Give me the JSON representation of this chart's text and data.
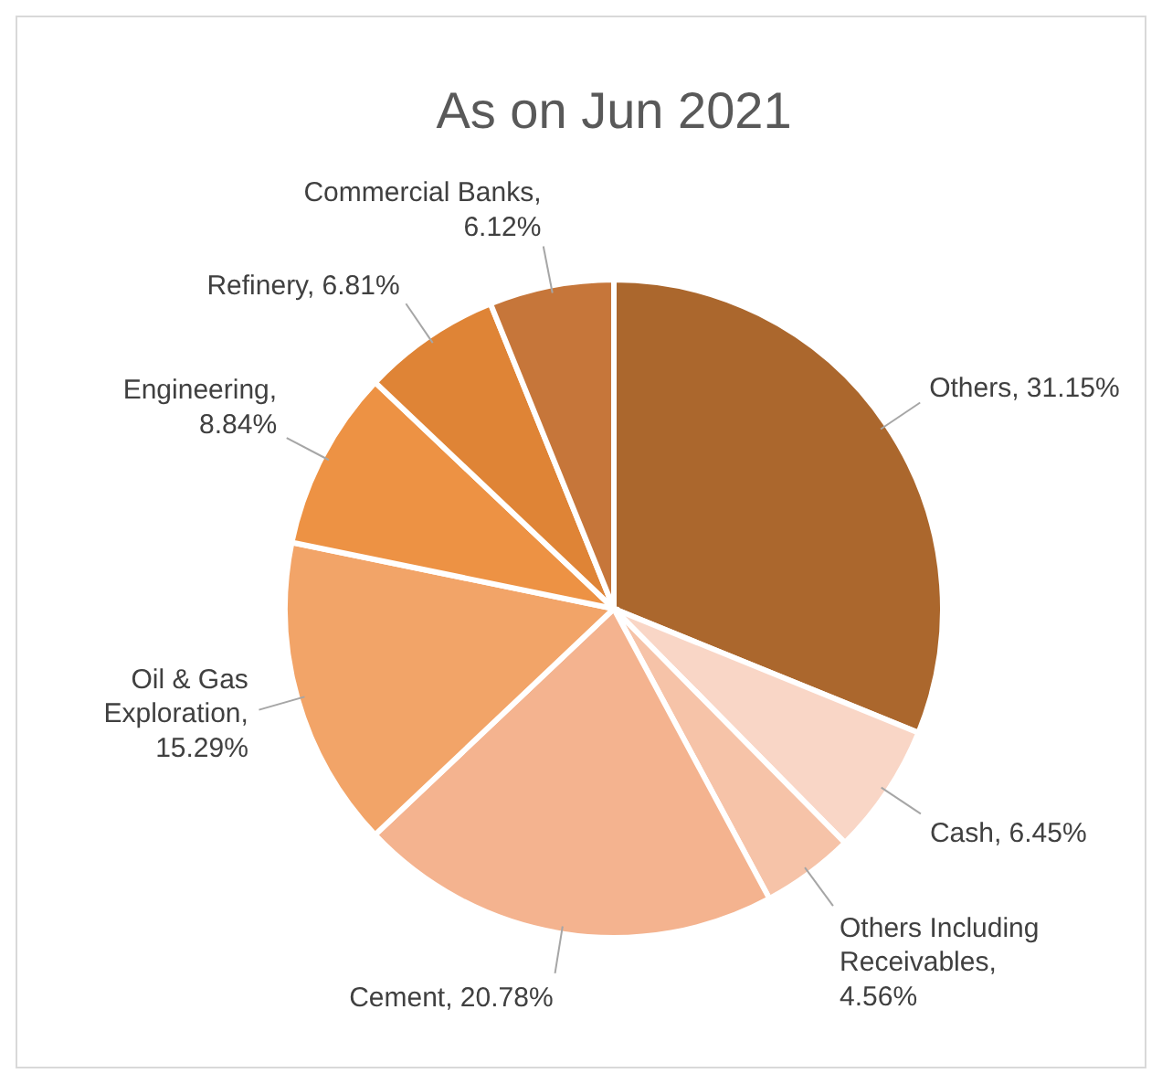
{
  "chart_data": {
    "type": "pie",
    "title": "As on Jun 2021",
    "categories": [
      "Others",
      "Cash",
      "Others Including Receivables",
      "Cement",
      "Oil & Gas Exploration",
      "Engineering",
      "Refinery",
      "Commercial Banks"
    ],
    "values": [
      31.15,
      6.45,
      4.56,
      20.78,
      15.29,
      8.84,
      6.81,
      6.12
    ],
    "value_labels": [
      ", 31.15%",
      ", 6.45%",
      ", 4.56%",
      ", 20.78%",
      ", 15.29%",
      ", 8.84%",
      ", 6.81%",
      ", 6.12%"
    ],
    "colors": [
      "#ab672d",
      "#f9d6c6",
      "#f6c3a8",
      "#f4b38f",
      "#f2a468",
      "#ed9244",
      "#df8436",
      "#c6763a"
    ]
  }
}
